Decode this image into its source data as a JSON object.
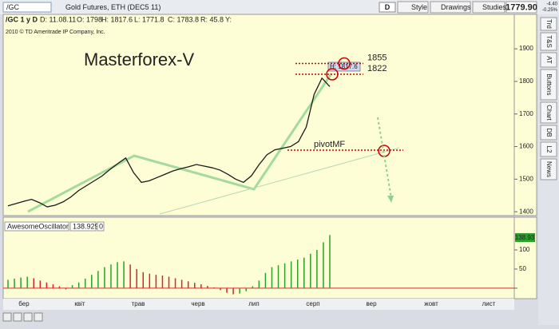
{
  "toolbar": {
    "symbol": "/GC",
    "description": "Gold Futures, ETH (DEC5 11)",
    "period": "D",
    "buttons": [
      "Style",
      "Drawings",
      "Studies"
    ],
    "last": "1779.90",
    "change": "-4.40",
    "change_pct": "-0.25%"
  },
  "header": {
    "symbol_period": "/GC 1 y D",
    "date": "D: 11.08.11",
    "open": "O: 1798",
    "high": "H: 1817.6",
    "low": "L: 1771.8",
    "close": "C: 1783.8",
    "range": "R: 45.8",
    "volume": "Y:"
  },
  "copyright": "2010 © TD Ameritrade IP Company, Inc.",
  "watermark": "Masterforex-V",
  "pivot_label": "pivotMF",
  "high_label": "H: 1817.6",
  "side_tabs": [
    "Trd",
    "T&S",
    "AT",
    "Buttons",
    "Chart",
    "DB",
    "L2",
    "News"
  ],
  "months": [
    "бер",
    "квіт",
    "трав",
    "черв",
    "лип",
    "серп",
    "вер",
    "жовт",
    "лист"
  ],
  "price_chart": {
    "type": "line",
    "levels": [
      1855,
      1822
    ],
    "values": [
      1418,
      1425,
      1432,
      1438,
      1428,
      1415,
      1420,
      1430,
      1445,
      1465,
      1480,
      1495,
      1510,
      1530,
      1548,
      1565,
      1520,
      1490,
      1495,
      1505,
      1515,
      1525,
      1532,
      1538,
      1545,
      1540,
      1535,
      1528,
      1515,
      1500,
      1490,
      1510,
      1545,
      1575,
      1590,
      1595,
      1600,
      1615,
      1660,
      1760,
      1810,
      1784
    ],
    "color": "#1a1a1a",
    "ylim": [
      1393,
      1942
    ],
    "yticks": [
      1400,
      1500,
      1600,
      1700,
      1800,
      1900
    ]
  },
  "oscillator": {
    "type": "bar",
    "name": "AwesomeOscillator",
    "value_text": "138.9291",
    "zero_text": "0",
    "last_label": "138.93",
    "values": [
      22,
      25,
      28,
      30,
      26,
      20,
      15,
      10,
      5,
      -3,
      8,
      15,
      25,
      35,
      45,
      55,
      62,
      68,
      70,
      62,
      50,
      42,
      38,
      35,
      33,
      30,
      26,
      22,
      18,
      14,
      10,
      6,
      2,
      -5,
      -12,
      -16,
      -14,
      -8,
      5,
      20,
      40,
      55,
      60,
      65,
      70,
      75,
      80,
      90,
      100,
      120,
      138.9
    ],
    "up_color": "#2ca02c",
    "down_color": "#d62728",
    "ylim": [
      -19,
      148
    ],
    "yticks": [
      0,
      50,
      100
    ]
  }
}
